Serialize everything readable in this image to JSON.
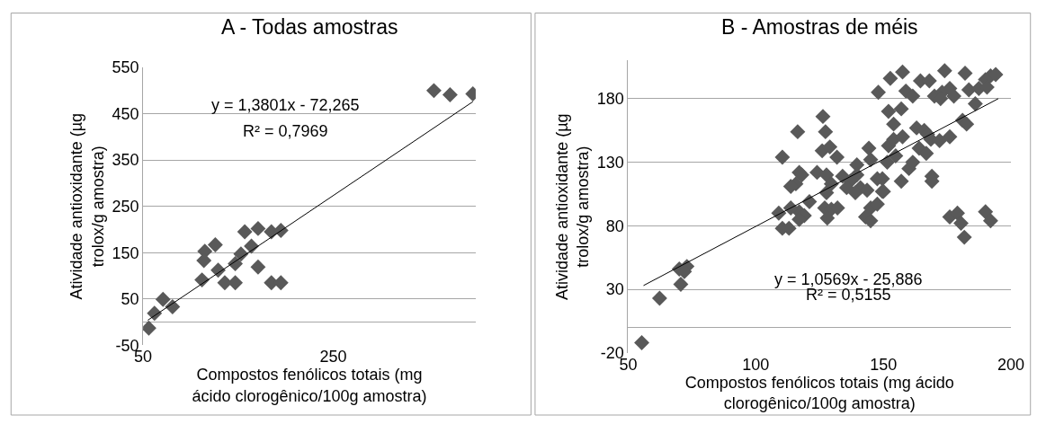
{
  "chart_data": [
    {
      "type": "scatter",
      "title": "A - Todas amostras",
      "xlabel": "Compostos fenólicos totais (mg ácido clorogênico/100g amostra)",
      "ylabel": "Atividade antioxidante (µg trolox/g amostra)",
      "xlim": [
        50,
        400
      ],
      "xticks": [
        50,
        250
      ],
      "ylim": [
        -50,
        550
      ],
      "yticks": [
        -50,
        50,
        150,
        250,
        350,
        450,
        550
      ],
      "grid": "y",
      "marker": "diamond",
      "annotations": [
        "y = 1,3801x - 72,265",
        "R² = 0,7969"
      ],
      "series": [
        {
          "color": "#595959",
          "x": [
            56,
            62,
            71,
            81,
            112,
            115,
            126,
            114,
            136,
            147,
            157,
            171,
            185,
            195,
            171,
            185,
            195,
            153,
            164,
            129,
            147,
            356,
            373,
            397
          ],
          "values": [
            -13,
            19,
            49,
            33,
            91,
            153,
            167,
            133,
            85,
            85,
            195,
            202,
            195,
            198,
            119,
            85,
            85,
            147,
            164,
            112,
            126,
            500,
            491,
            493
          ]
        },
        {
          "type": "line",
          "color": "#000000",
          "marker": "none",
          "x": [
            55,
            397
          ],
          "values": [
            4,
            476
          ]
        }
      ]
    },
    {
      "type": "scatter",
      "title": "B - Amostras de méis",
      "xlabel": "Compostos fenólicos totais (mg ácido clorogênico/100g amostra)",
      "ylabel": "Atividade antioxidante (µg trolox/g amostra)",
      "xlim": [
        50,
        200
      ],
      "xticks": [
        50,
        100,
        150,
        200
      ],
      "ylim": [
        -20,
        210
      ],
      "yticks": [
        -20,
        30,
        80,
        130,
        180
      ],
      "grid": "y",
      "marker": "diamond",
      "annotations": [
        "y = 1,0569x - 25,886",
        "R² = 0,5155"
      ],
      "series": [
        {
          "color": "#595959",
          "x": [
            55.3,
            62.3,
            70.6,
            70,
            73,
            72,
            110.4,
            116.4,
            126.3,
            127.3,
            126,
            129,
            131.8,
            139.6,
            144.3,
            145,
            124,
            117,
            115.7,
            113.7,
            118,
            134,
            139.6,
            137,
            135.6,
            141,
            139,
            143.6,
            149.6,
            147.6,
            149.6,
            127.7,
            129.6,
            127.7,
            127,
            129.6,
            132,
            128,
            121,
            117,
            119,
            117,
            113.7,
            109,
            110.4,
            113,
            143,
            145,
            145,
            147.6,
            150,
            151.5,
            154.8,
            152,
            154,
            154,
            152,
            157,
            148,
            152.7,
            157.5,
            158.8,
            161.5,
            157.5,
            157,
            160,
            161.5,
            164,
            166.8,
            163,
            166,
            167.3,
            168.6,
            172,
            176,
            169,
            169,
            164.5,
            168,
            170,
            173,
            172.4,
            176,
            177.6,
            174,
            182,
            183.5,
            187.4,
            186,
            181,
            182.6,
            176,
            179,
            180.4,
            181.7,
            190,
            192,
            190,
            192,
            194,
            190.6
          ],
          "values": [
            -12,
            23,
            34,
            46,
            48,
            44,
            134,
            154,
            166,
            154,
            139,
            142,
            134,
            128,
            141,
            132,
            122,
            122,
            113,
            111,
            120,
            119,
            120,
            115,
            110,
            110,
            106,
            108,
            107,
            117,
            117,
            120,
            113,
            106,
            94,
            93,
            94,
            86,
            99,
            91,
            88,
            85,
            94,
            90,
            78,
            78,
            87,
            84,
            94,
            97,
            107,
            130,
            135,
            143,
            148,
            160,
            170,
            172,
            185,
            196,
            201,
            186,
            182,
            150,
            115,
            125,
            130,
            141,
            137,
            157,
            155,
            152,
            148,
            147,
            150,
            119,
            115,
            194,
            194,
            182,
            185,
            180,
            188,
            182,
            202,
            200,
            187,
            188,
            176,
            163,
            160,
            87,
            90,
            82,
            71,
            91,
            84,
            195,
            198,
            199,
            189
          ]
        },
        {
          "type": "line",
          "color": "#000000",
          "marker": "none",
          "x": [
            56,
            195
          ],
          "values": [
            33,
            180
          ]
        }
      ]
    }
  ]
}
